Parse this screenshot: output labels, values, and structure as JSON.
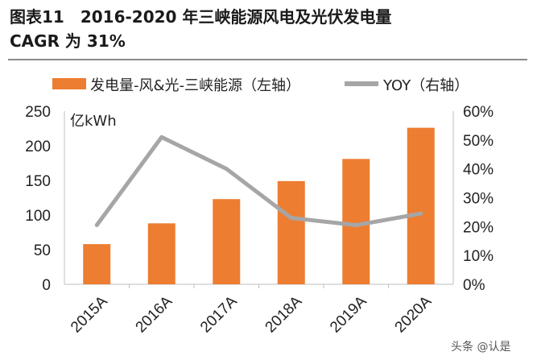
{
  "header": {
    "line1": "图表11　2016-2020 年三峡能源风电及光伏发电量",
    "line2": "CAGR 为 31%"
  },
  "colors": {
    "bar": "#ED7D31",
    "line": "#A6A6A6",
    "axis": "#BFBFBF"
  },
  "watermark": "头条 @认是",
  "chart_data": {
    "type": "bar",
    "title": "2016-2020 年三峡能源风电及光伏发电量 CAGR 为 31%",
    "categories": [
      "2015A",
      "2016A",
      "2017A",
      "2018A",
      "2019A",
      "2020A"
    ],
    "unit_label": "亿kWh",
    "series": [
      {
        "name": "发电量-风&光-三峡能源（左轴）",
        "type": "bar",
        "axis": "left",
        "values": [
          58,
          88,
          123,
          149,
          181,
          226
        ]
      },
      {
        "name": "YOY（右轴）",
        "type": "line",
        "axis": "right",
        "values": [
          20.5,
          51,
          40,
          23,
          20.5,
          24.5
        ]
      }
    ],
    "y_left": {
      "min": 0,
      "max": 250,
      "ticks": [
        "0",
        "50",
        "100",
        "150",
        "200",
        "250"
      ]
    },
    "y_right": {
      "min": 0,
      "max": 60,
      "ticks": [
        "0%",
        "10%",
        "20%",
        "30%",
        "40%",
        "50%",
        "60%"
      ]
    },
    "legend_position": "top"
  }
}
